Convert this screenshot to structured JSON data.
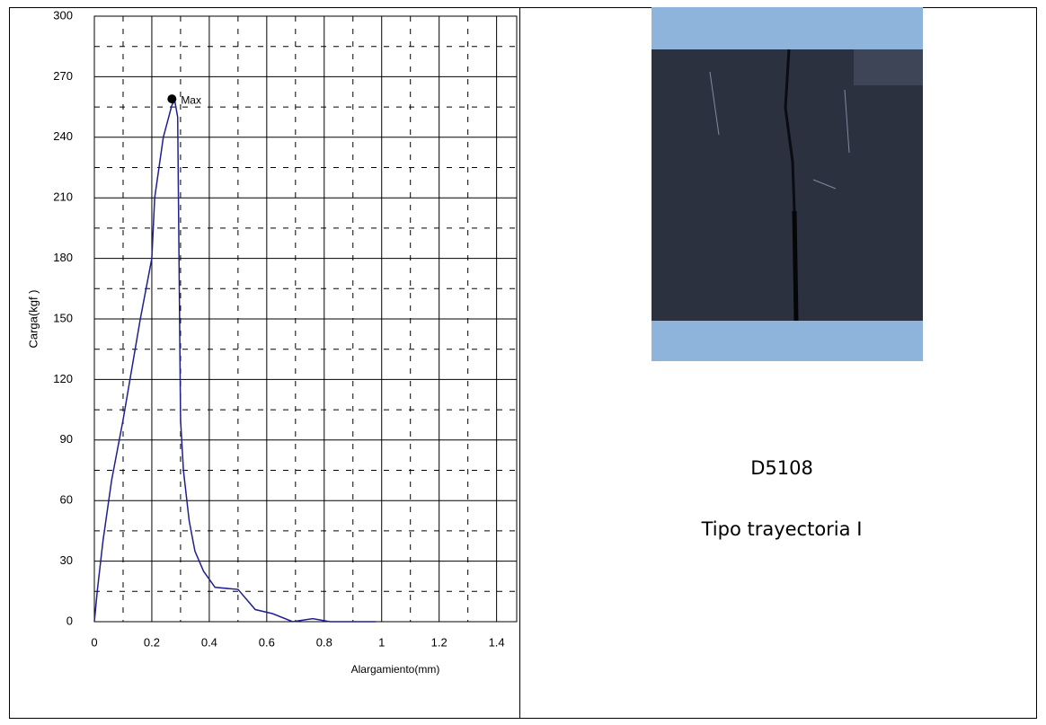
{
  "chart_data": {
    "type": "line",
    "x_label": "Alargamiento(mm)",
    "y_label": "Carga(kgf )",
    "x": [
      0,
      0.01,
      0.03,
      0.06,
      0.1,
      0.13,
      0.16,
      0.2,
      0.21,
      0.24,
      0.27,
      0.28,
      0.29,
      0.3,
      0.31,
      0.33,
      0.35,
      0.38,
      0.42,
      0.5,
      0.56,
      0.62,
      0.69,
      0.76,
      0.82,
      0.98
    ],
    "values": [
      0,
      15,
      40,
      70,
      100,
      125,
      150,
      180,
      210,
      240,
      256,
      258,
      250,
      100,
      75,
      50,
      35,
      25,
      17,
      16,
      6,
      4,
      0,
      1.5,
      0,
      0
    ],
    "color": "#1f1f8f",
    "marker": {
      "x": 0.27,
      "y": 259,
      "label": "Max"
    },
    "xlim": [
      0,
      1.47
    ],
    "xticks": [
      0,
      0.2,
      0.4,
      0.6,
      0.8,
      1,
      1.2,
      1.4
    ],
    "ylim": [
      0,
      300
    ],
    "yticks": [
      0,
      30,
      60,
      90,
      120,
      150,
      180,
      210,
      240,
      270,
      300
    ],
    "grid": true
  },
  "specimen": {
    "code": "D5108",
    "trajectory": "Tipo trayectoria I"
  }
}
